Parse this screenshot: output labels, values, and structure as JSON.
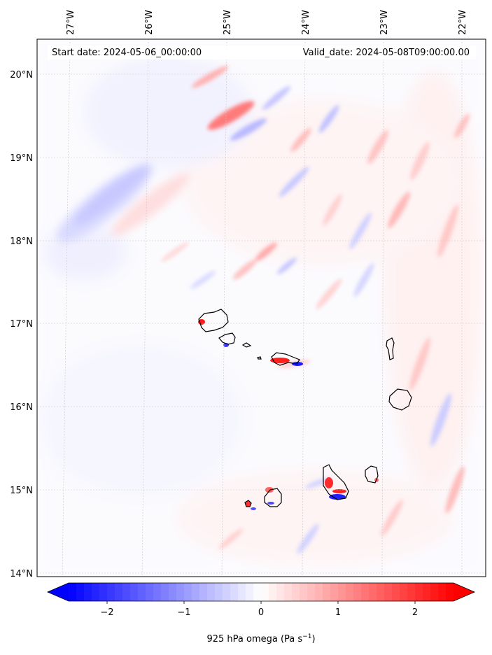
{
  "map": {
    "start_date": "Start date: 2024-05-06_00:00:00",
    "valid_date": "Valid_date: 2024-05-08T09:00:00.00",
    "lon_labels": [
      "27°W",
      "26°W",
      "25°W",
      "24°W",
      "23°W",
      "22°W"
    ],
    "lat_labels": [
      "20°N",
      "19°N",
      "18°N",
      "17°N",
      "16°N",
      "15°N",
      "14°N"
    ],
    "lon_range": [
      -27.35,
      -21.95
    ],
    "lat_range": [
      13.95,
      20.42
    ],
    "gridlines": true
  },
  "colorbar": {
    "ticks": [
      "−2",
      "−1",
      "0",
      "1",
      "2"
    ],
    "tick_values": [
      -2,
      -1,
      0,
      1,
      2
    ],
    "range": [
      -2.5,
      2.5
    ],
    "levels": 50,
    "label_main": "925 hPa omega (Pa s",
    "label_sup": "−1",
    "label_end": ")",
    "colormap": "bwr",
    "negative_color": "#0000ff",
    "zero_color": "#ffffff",
    "positive_color": "#ff0000"
  }
}
